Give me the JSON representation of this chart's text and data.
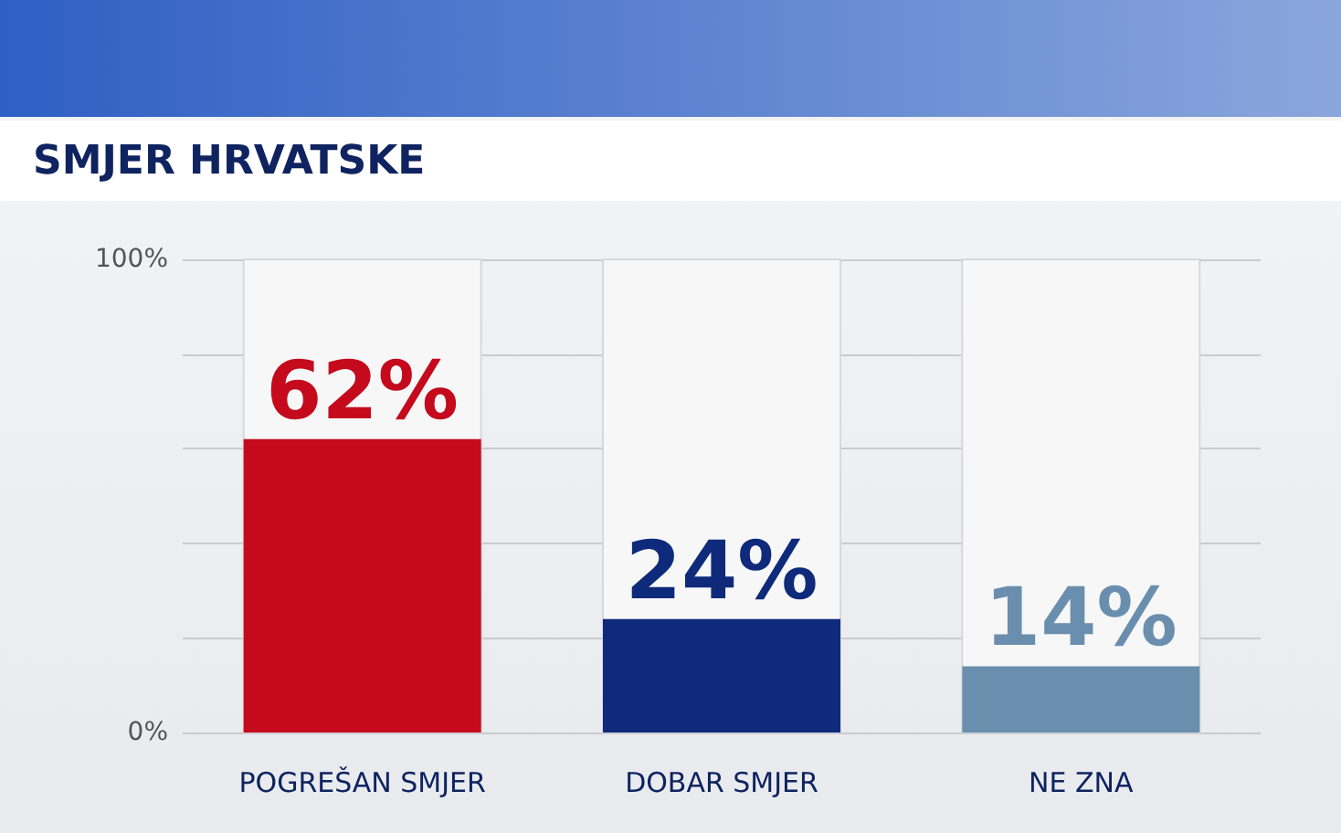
{
  "chart_data": {
    "type": "bar",
    "title": "SMJER HRVATSKE",
    "categories": [
      "POGREŠAN SMJER",
      "DOBAR SMJER",
      "NE ZNA"
    ],
    "values": [
      62,
      24,
      14
    ],
    "colors": [
      "#c40a1c",
      "#0f2a7a",
      "#6a8fae"
    ],
    "value_labels": [
      "62%",
      "24%",
      "14%"
    ],
    "ylim": [
      0,
      100
    ],
    "yticks": [
      {
        "value": 0,
        "label": "0%"
      },
      {
        "value": 20,
        "label": null
      },
      {
        "value": 40,
        "label": null
      },
      {
        "value": 60,
        "label": null
      },
      {
        "value": 80,
        "label": null
      },
      {
        "value": 100,
        "label": "100%"
      }
    ],
    "grid": "y"
  }
}
